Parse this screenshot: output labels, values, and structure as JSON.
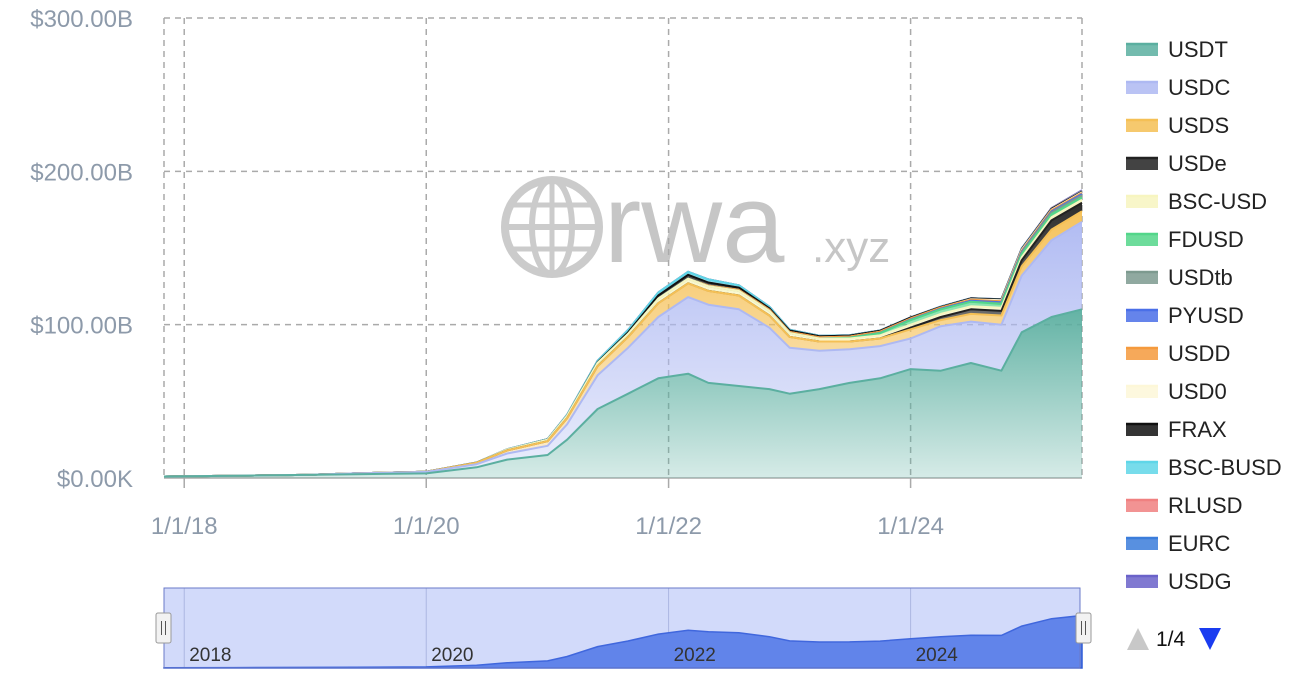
{
  "chart_data": {
    "type": "area",
    "stacked": true,
    "y_unit": "USD",
    "ylim": [
      0,
      300
    ],
    "y_ticks": [
      {
        "value": 0,
        "label": "$0.00K"
      },
      {
        "value": 100,
        "label": "$100.00B"
      },
      {
        "value": 200,
        "label": "$200.00B"
      },
      {
        "value": 300,
        "label": "$300.00B"
      }
    ],
    "xlim": [
      "2017-11-01",
      "2025-06-01"
    ],
    "x_ticks": [
      {
        "date": "2018-01-01",
        "label": "1/1/18"
      },
      {
        "date": "2020-01-01",
        "label": "1/1/20"
      },
      {
        "date": "2022-01-01",
        "label": "1/1/22"
      },
      {
        "date": "2024-01-01",
        "label": "1/1/24"
      }
    ],
    "grid": true,
    "legend_position": "right",
    "x": [
      "2017-11-01",
      "2018-06-01",
      "2019-01-01",
      "2019-06-01",
      "2020-01-01",
      "2020-06-01",
      "2020-09-01",
      "2021-01-01",
      "2021-03-01",
      "2021-06-01",
      "2021-09-01",
      "2021-12-01",
      "2022-03-01",
      "2022-05-01",
      "2022-08-01",
      "2022-11-01",
      "2023-01-01",
      "2023-04-01",
      "2023-07-01",
      "2023-10-01",
      "2024-01-01",
      "2024-04-01",
      "2024-07-01",
      "2024-10-01",
      "2024-12-01",
      "2025-03-01",
      "2025-06-01"
    ],
    "series": [
      {
        "name": "USDT",
        "color": "#5bafa0",
        "values": [
          1,
          1.5,
          2,
          2.5,
          3,
          7,
          12,
          15,
          25,
          45,
          55,
          65,
          68,
          62,
          60,
          58,
          55,
          58,
          62,
          65,
          71,
          70,
          75,
          70,
          95,
          105,
          110
        ]
      },
      {
        "name": "USDC",
        "color": "#aeb9f2",
        "values": [
          0,
          0,
          0,
          0.5,
          1,
          2,
          4,
          6,
          10,
          22,
          30,
          40,
          50,
          51,
          50,
          40,
          30,
          25,
          22,
          21,
          20,
          29,
          27,
          30,
          37,
          50,
          57
        ]
      },
      {
        "name": "USDS",
        "color": "#f5c055",
        "values": [
          0,
          0,
          0,
          0,
          0.1,
          1,
          2,
          3,
          4,
          6,
          7,
          9,
          9,
          9,
          9,
          8,
          7,
          6,
          5,
          5,
          6,
          4,
          5,
          6,
          6,
          7,
          7
        ]
      },
      {
        "name": "USDe",
        "color": "#222222",
        "values": [
          0,
          0,
          0,
          0,
          0,
          0,
          0,
          0,
          0,
          0,
          0,
          0,
          0,
          0,
          0,
          0,
          0,
          0,
          0,
          0,
          1,
          2,
          3,
          3,
          4,
          6,
          5.5
        ]
      },
      {
        "name": "BSC-USD",
        "color": "#f7f5c0",
        "values": [
          0,
          0,
          0,
          0,
          0,
          0,
          0.5,
          1,
          1.5,
          2,
          2,
          3,
          3,
          3,
          3,
          3,
          2.5,
          2,
          2,
          2,
          2,
          2,
          2,
          2,
          2,
          2,
          2
        ]
      },
      {
        "name": "FDUSD",
        "color": "#53d68a",
        "values": [
          0,
          0,
          0,
          0,
          0,
          0,
          0,
          0,
          0,
          0,
          0,
          0,
          0,
          0,
          0,
          0,
          0,
          0,
          0.5,
          1.5,
          3,
          3,
          3,
          2.5,
          2,
          2,
          1.5
        ]
      },
      {
        "name": "USDtb",
        "color": "#7d9a8f",
        "values": [
          0,
          0,
          0,
          0,
          0,
          0,
          0,
          0,
          0,
          0,
          0,
          0,
          0,
          0,
          0,
          0,
          0,
          0,
          0,
          0,
          0,
          0,
          0,
          0.5,
          1,
          1.2,
          1.4
        ]
      },
      {
        "name": "PYUSD",
        "color": "#4a6fe8",
        "values": [
          0,
          0,
          0,
          0,
          0,
          0,
          0,
          0,
          0,
          0,
          0,
          0,
          0,
          0,
          0,
          0,
          0,
          0,
          0,
          0.2,
          0.3,
          0.4,
          0.6,
          0.6,
          0.5,
          0.6,
          0.8
        ]
      },
      {
        "name": "USDD",
        "color": "#f59a3d",
        "values": [
          0,
          0,
          0,
          0,
          0,
          0,
          0,
          0,
          0,
          0,
          0,
          0,
          0,
          0.5,
          0.7,
          0.7,
          0.7,
          0.7,
          0.7,
          0.7,
          0.7,
          0.7,
          0.7,
          0.7,
          0.7,
          0.7,
          0.7
        ]
      },
      {
        "name": "USD0",
        "color": "#fdf7d8",
        "values": [
          0,
          0,
          0,
          0,
          0,
          0,
          0,
          0,
          0,
          0,
          0,
          0,
          0,
          0,
          0,
          0,
          0,
          0,
          0,
          0,
          0,
          0,
          0.3,
          0.6,
          0.6,
          0.5,
          0.5
        ]
      },
      {
        "name": "FRAX",
        "color": "#111111",
        "values": [
          0,
          0,
          0,
          0,
          0,
          0,
          0,
          0.1,
          0.2,
          0.5,
          1,
          2,
          2.5,
          2,
          1.5,
          1,
          1,
          0.8,
          0.7,
          0.6,
          0.6,
          0.5,
          0.5,
          0.5,
          0.5,
          0.5,
          0.4
        ]
      },
      {
        "name": "BSC-BUSD",
        "color": "#5fd6e8",
        "values": [
          0,
          0,
          0,
          0,
          0,
          0.1,
          0.2,
          0.3,
          0.5,
          1,
          1.5,
          2,
          2,
          2,
          1.5,
          1,
          0.5,
          0.3,
          0.2,
          0.2,
          0.1,
          0.1,
          0.1,
          0.1,
          0.1,
          0.1,
          0.1
        ]
      },
      {
        "name": "RLUSD",
        "color": "#f08080",
        "values": [
          0,
          0,
          0,
          0,
          0,
          0,
          0,
          0,
          0,
          0,
          0,
          0,
          0,
          0,
          0,
          0,
          0,
          0,
          0,
          0,
          0,
          0,
          0,
          0,
          0.1,
          0.2,
          0.3
        ]
      },
      {
        "name": "EURC",
        "color": "#3b7ddb",
        "values": [
          0,
          0,
          0,
          0,
          0,
          0,
          0,
          0,
          0,
          0,
          0,
          0,
          0,
          0,
          0,
          0,
          0,
          0,
          0,
          0,
          0.05,
          0.06,
          0.08,
          0.1,
          0.1,
          0.15,
          0.2
        ]
      },
      {
        "name": "USDG",
        "color": "#6a62c9",
        "values": [
          0,
          0,
          0,
          0,
          0,
          0,
          0,
          0,
          0,
          0,
          0,
          0,
          0,
          0,
          0,
          0,
          0,
          0,
          0,
          0,
          0,
          0,
          0,
          0,
          0.05,
          0.1,
          0.2
        ]
      }
    ],
    "navigator": {
      "labels": [
        {
          "date": "2018-01-01",
          "label": "2018"
        },
        {
          "date": "2020-01-01",
          "label": "2020"
        },
        {
          "date": "2022-01-01",
          "label": "2022"
        },
        {
          "date": "2024-01-01",
          "label": "2024"
        }
      ]
    }
  },
  "legend": {
    "pager": {
      "text": "1/4",
      "up_icon": "triangle-up-icon",
      "down_icon": "triangle-down-icon",
      "up_color": "#c8c8c8",
      "down_color": "#1a3cf0"
    }
  },
  "watermark": {
    "main": "rwa",
    "suffix": ".xyz",
    "icon": "globe-icon"
  }
}
